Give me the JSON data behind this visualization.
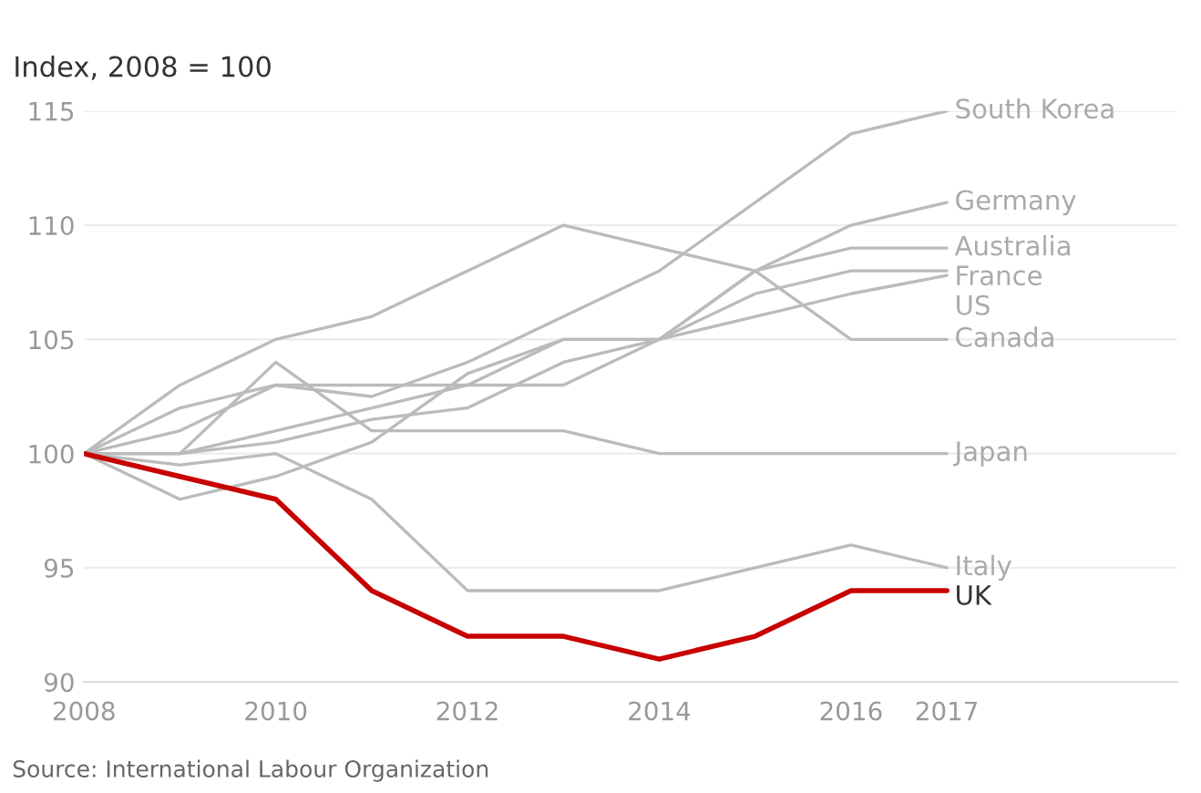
{
  "chart_data": {
    "type": "line",
    "ylabel": "Index, 2008 = 100",
    "x": [
      2008,
      2009,
      2010,
      2011,
      2012,
      2013,
      2014,
      2015,
      2016,
      2017
    ],
    "series": [
      {
        "name": "South Korea",
        "color": "#bbbbbb",
        "values": [
          100,
          102,
          103,
          102.5,
          104,
          106,
          108,
          111,
          114,
          115
        ]
      },
      {
        "name": "Germany",
        "color": "#bbbbbb",
        "values": [
          100,
          100,
          101,
          102,
          103,
          105,
          105,
          108,
          110,
          111
        ]
      },
      {
        "name": "Australia",
        "color": "#bbbbbb",
        "values": [
          100,
          101,
          103,
          103,
          103,
          103,
          105,
          108,
          109,
          109
        ]
      },
      {
        "name": "France",
        "color": "#bbbbbb",
        "values": [
          100,
          100,
          100.5,
          101.5,
          102,
          104,
          105,
          107,
          108,
          108
        ]
      },
      {
        "name": "US",
        "color": "#bbbbbb",
        "values": [
          100,
          98,
          99,
          100.5,
          103.5,
          105,
          105,
          106,
          107,
          107.8
        ]
      },
      {
        "name": "Canada",
        "color": "#bbbbbb",
        "values": [
          100,
          103,
          105,
          106,
          108,
          110,
          109,
          108,
          105,
          105
        ]
      },
      {
        "name": "Japan",
        "color": "#bbbbbb",
        "values": [
          100,
          100,
          104,
          101,
          101,
          101,
          100,
          100,
          100,
          100
        ]
      },
      {
        "name": "Italy",
        "color": "#bbbbbb",
        "values": [
          100,
          99.5,
          100,
          98,
          94,
          94,
          94,
          95,
          96,
          95
        ]
      },
      {
        "name": "UK",
        "color": "#c70000",
        "values": [
          100,
          99,
          98,
          94,
          92,
          92,
          91,
          92,
          94,
          94
        ]
      }
    ],
    "xlim": [
      2008,
      2019.4
    ],
    "ylim": [
      90,
      115
    ],
    "xticks": [
      2008,
      2010,
      2012,
      2014,
      2016,
      2017
    ],
    "yticks": [
      90,
      95,
      100,
      105,
      110,
      115
    ],
    "grid": "y",
    "legend": false,
    "marker": "none",
    "line_style": "solid",
    "annotations": [
      "Source: International Labour Organization"
    ]
  }
}
